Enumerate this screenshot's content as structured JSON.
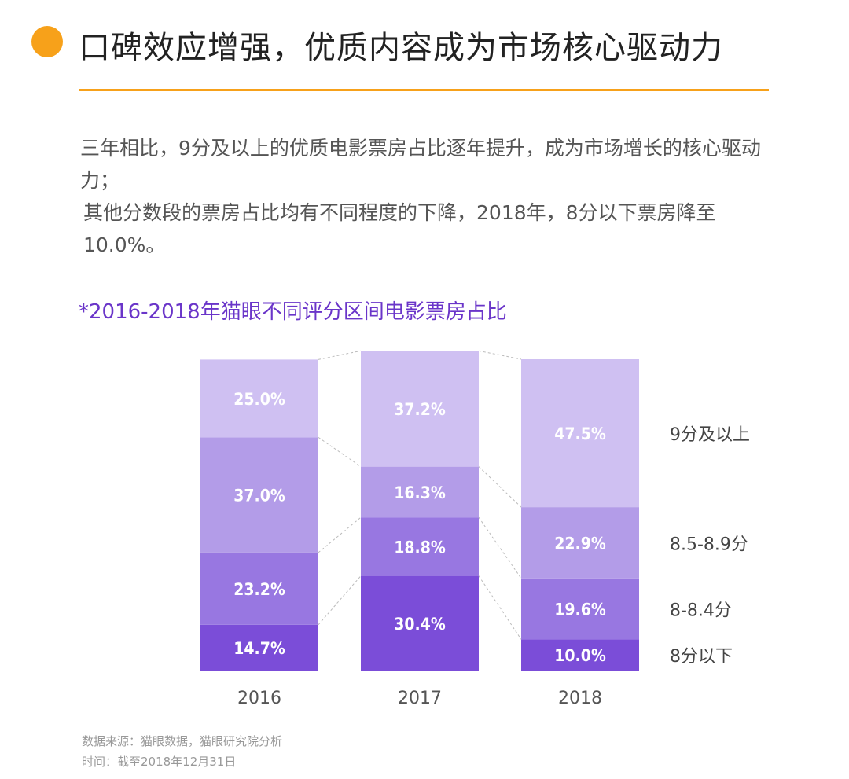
{
  "header": {
    "title": "口碑效应增强，优质内容成为市场核心驱动力",
    "accent_color": "#f7a11a"
  },
  "description": [
    "三年相比，9分及以上的优质电影票房占比逐年提升，成为市场增长的核心驱动力；",
    "其他分数段的票房占比均有不同程度的下降，2018年，8分以下票房降至10.0%。"
  ],
  "chart_data": {
    "type": "bar",
    "stacked": true,
    "title": "*2016-2018年猫眼不同评分区间电影票房占比",
    "title_color": "#6a35c9",
    "categories": [
      "2016",
      "2017",
      "2018"
    ],
    "series": [
      {
        "name": "8分以下",
        "values": [
          14.7,
          30.4,
          10.0
        ],
        "labels": [
          "14.7%",
          "30.4%",
          "10.0%"
        ],
        "color": "#7b4dd8"
      },
      {
        "name": "8-8.4分",
        "values": [
          23.2,
          18.8,
          19.6
        ],
        "labels": [
          "23.2%",
          "18.8%",
          "19.6%"
        ],
        "color": "#9877e1"
      },
      {
        "name": "8.5-8.9分",
        "values": [
          37.0,
          16.3,
          22.9
        ],
        "labels": [
          "37.0%",
          "16.3%",
          "22.9%"
        ],
        "color": "#b39ce8"
      },
      {
        "name": "9分及以上",
        "values": [
          25.0,
          37.2,
          47.5
        ],
        "labels": [
          "25.0%",
          "37.2%",
          "47.5%"
        ],
        "color": "#cfc0f2"
      }
    ],
    "ylim": [
      0,
      100
    ],
    "grid": false,
    "legend": "right"
  },
  "footer": {
    "source": "数据来源：猫眼数据，猫眼研究院分析",
    "time": "时间：截至2018年12月31日"
  }
}
